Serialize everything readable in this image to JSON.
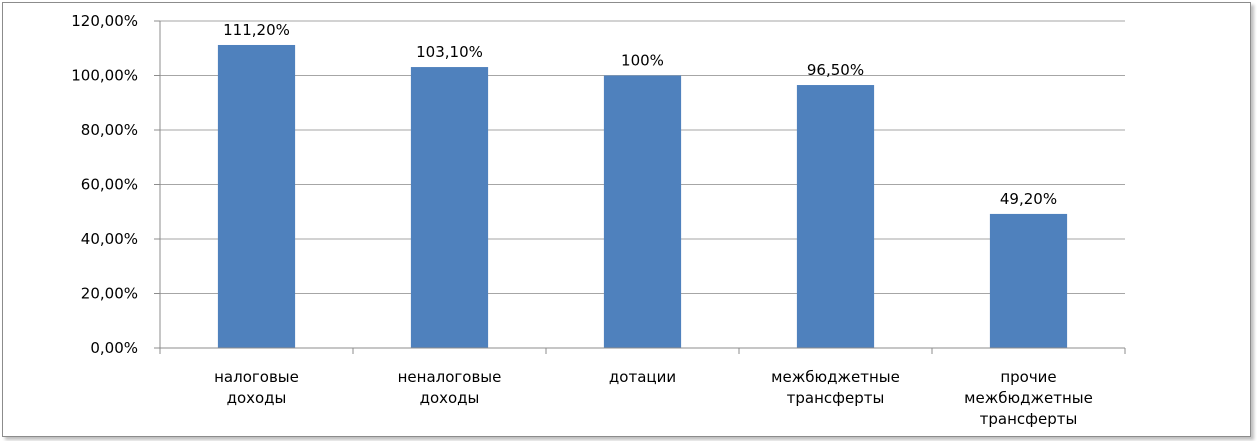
{
  "chart_data": {
    "type": "bar",
    "categories": [
      [
        "налоговые",
        "доходы"
      ],
      [
        "неналоговые",
        "доходы"
      ],
      [
        "дотации"
      ],
      [
        "межбюджетные",
        "трансферты"
      ],
      [
        "прочие",
        "межбюджетные",
        "трансферты"
      ]
    ],
    "values": [
      111.2,
      103.1,
      100,
      96.5,
      49.2
    ],
    "data_labels": [
      "111,20%",
      "103,10%",
      "100%",
      "96,50%",
      "49,20%"
    ],
    "y_ticks": [
      {
        "value": 0,
        "label": "0,00%"
      },
      {
        "value": 20,
        "label": "20,00%"
      },
      {
        "value": 40,
        "label": "40,00%"
      },
      {
        "value": 60,
        "label": "60,00%"
      },
      {
        "value": 80,
        "label": "80,00%"
      },
      {
        "value": 100,
        "label": "100,00%"
      },
      {
        "value": 120,
        "label": "120,00%"
      }
    ],
    "ylim": [
      0,
      120
    ],
    "grid": true,
    "legend": "none",
    "colors": {
      "bar": "#4F81BD",
      "grid": "#a6a6a6",
      "axis": "#8c8c8c"
    }
  }
}
